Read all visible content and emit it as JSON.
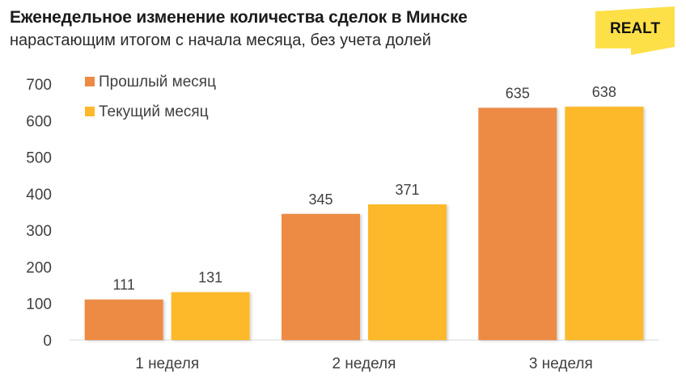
{
  "header": {
    "title": "Еженедельное изменение количества сделок в Минске",
    "subtitle": "нарастающим итогом с начала месяца, без учета долей"
  },
  "logo": {
    "text": "REALT",
    "color": "#fde047"
  },
  "chart_data": {
    "type": "bar",
    "title": "Еженедельное изменение количества сделок в Минске",
    "subtitle": "нарастающим итогом с начала месяца, без учета долей",
    "categories": [
      "1 неделя",
      "2 неделя",
      "3 неделя"
    ],
    "series": [
      {
        "name": "Прошлый месяц",
        "values": [
          111,
          345,
          635
        ],
        "color": "#ed8b45"
      },
      {
        "name": "Текущий месяц",
        "values": [
          131,
          371,
          638
        ],
        "color": "#fdb92b"
      }
    ],
    "ylim": [
      0,
      700
    ],
    "yticks": [
      0,
      100,
      200,
      300,
      400,
      500,
      600,
      700
    ],
    "grid": false,
    "legend": "top-left"
  }
}
